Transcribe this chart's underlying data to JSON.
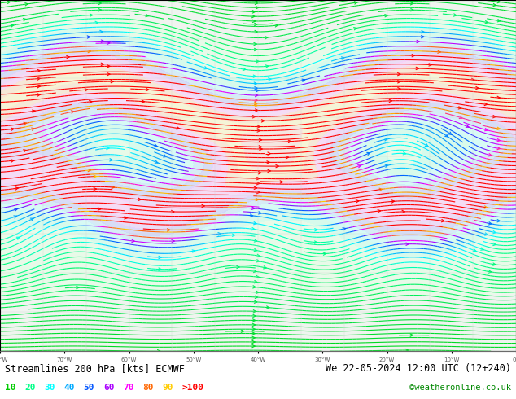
{
  "title_left": "Streamlines 200 hPa [kts] ECMWF",
  "title_right": "We 22-05-2024 12:00 UTC (12+240)",
  "credit": "©weatheronline.co.uk",
  "legend_values": [
    "10",
    "20",
    "30",
    "40",
    "50",
    "60",
    "70",
    "80",
    "90",
    ">100"
  ],
  "legend_colors": [
    "#00cc00",
    "#00ff88",
    "#00ffff",
    "#00aaff",
    "#0055ff",
    "#aa00ff",
    "#ff00ff",
    "#ff6600",
    "#ffcc00",
    "#ff0000"
  ],
  "bg_color": "#ffffff",
  "map_bg": "#f0f0f0",
  "bottom_bg": "#ffffff",
  "title_color": "#000000",
  "credit_color": "#008800",
  "figsize": [
    6.34,
    4.9
  ],
  "dpi": 100,
  "streamline_seed_points": 800,
  "axis_label_color": "#555555"
}
